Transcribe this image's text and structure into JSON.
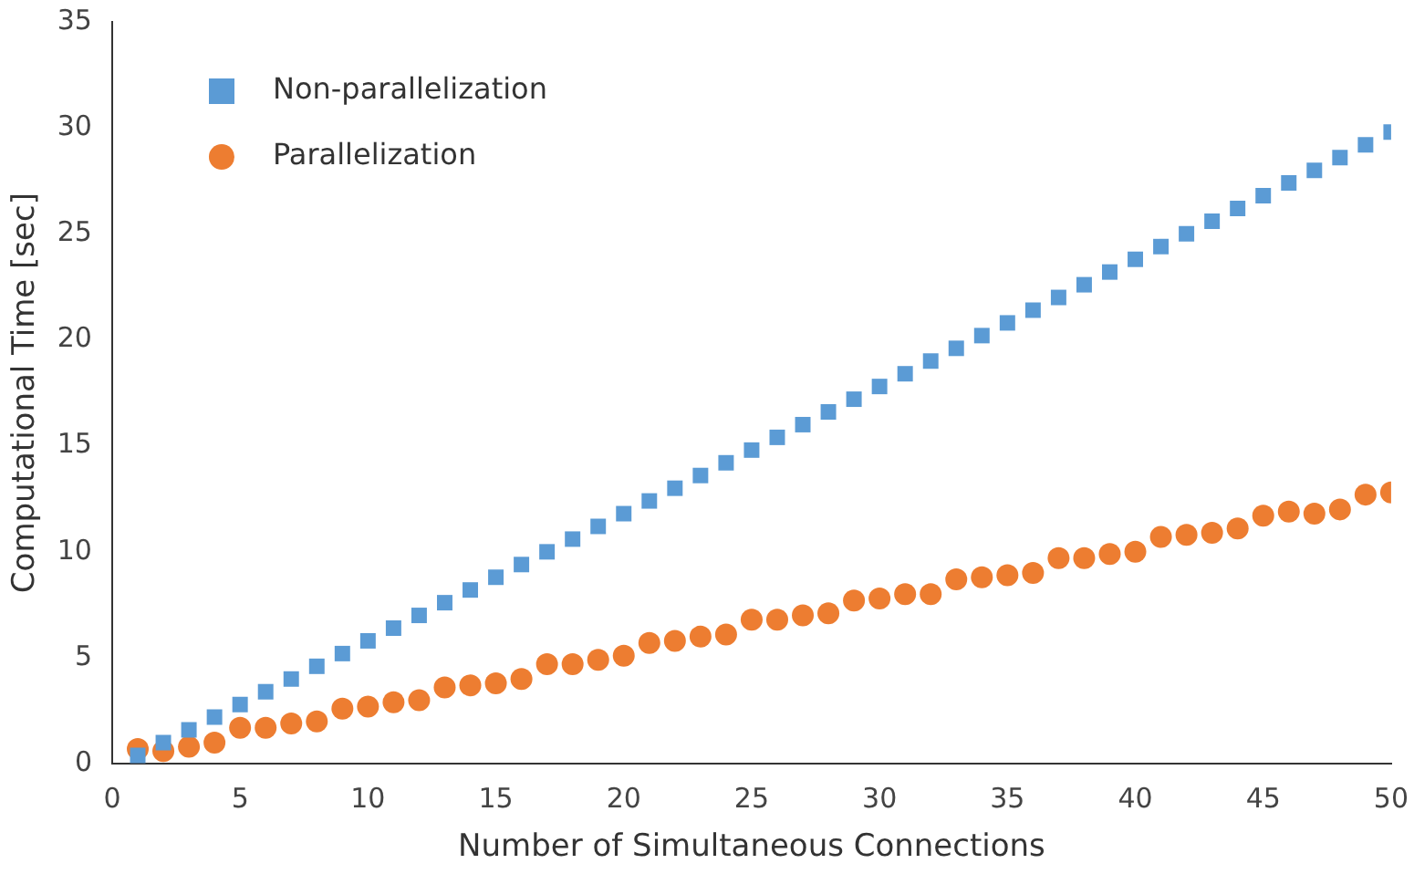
{
  "chart_data": {
    "type": "scatter",
    "xlabel": "Number of Simultaneous Connections",
    "ylabel": "Computational Time [sec]",
    "x": [
      1,
      2,
      3,
      4,
      5,
      6,
      7,
      8,
      9,
      10,
      11,
      12,
      13,
      14,
      15,
      16,
      17,
      18,
      19,
      20,
      21,
      22,
      23,
      24,
      25,
      26,
      27,
      28,
      29,
      30,
      31,
      32,
      33,
      34,
      35,
      36,
      37,
      38,
      39,
      40,
      41,
      42,
      43,
      44,
      45,
      46,
      47,
      48,
      49,
      50
    ],
    "series": [
      {
        "name": "Non-parallelization",
        "color": "#5b9bd5",
        "marker": "square",
        "values": [
          0.4,
          1.0,
          1.6,
          2.2,
          2.8,
          3.4,
          4.0,
          4.6,
          5.2,
          5.8,
          6.4,
          7.0,
          7.6,
          8.2,
          8.8,
          9.4,
          10.0,
          10.6,
          11.2,
          11.8,
          12.4,
          13.0,
          13.6,
          14.2,
          14.8,
          15.4,
          16.0,
          16.6,
          17.2,
          17.8,
          18.4,
          19.0,
          19.6,
          20.2,
          20.8,
          21.4,
          22.0,
          22.6,
          23.2,
          23.8,
          24.4,
          25.0,
          25.6,
          26.2,
          26.8,
          27.4,
          28.0,
          28.6,
          29.2,
          29.8
        ]
      },
      {
        "name": "Parallelization",
        "color": "#ed7d31",
        "marker": "circle",
        "values": [
          0.7,
          0.6,
          0.8,
          1.0,
          1.7,
          1.7,
          1.9,
          2.0,
          2.6,
          2.7,
          2.9,
          3.0,
          3.6,
          3.7,
          3.8,
          4.0,
          4.7,
          4.7,
          4.9,
          5.1,
          5.7,
          5.8,
          6.0,
          6.1,
          6.8,
          6.8,
          7.0,
          7.1,
          7.7,
          7.8,
          8.0,
          8.0,
          8.7,
          8.8,
          8.9,
          9.0,
          9.7,
          9.7,
          9.9,
          10.0,
          10.7,
          10.8,
          10.9,
          11.1,
          11.7,
          11.9,
          11.8,
          12.0,
          12.7,
          12.8
        ]
      }
    ],
    "xlim": [
      0,
      50
    ],
    "xticks": [
      0,
      5,
      10,
      15,
      20,
      25,
      30,
      35,
      40,
      45,
      50
    ],
    "ylim": [
      0,
      35
    ],
    "yticks": [
      0,
      5,
      10,
      15,
      20,
      25,
      30,
      35
    ],
    "grid": false,
    "legend": "top left"
  }
}
